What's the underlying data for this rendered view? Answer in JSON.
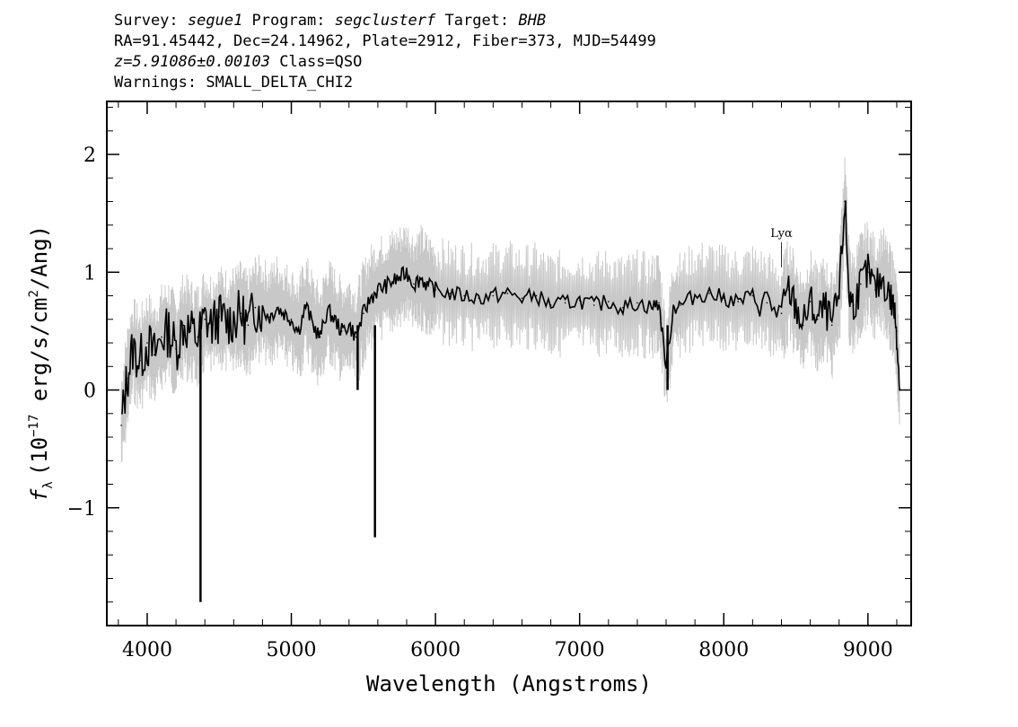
{
  "header": {
    "line1": {
      "survey_label": "Survey: ",
      "survey_value": "segue1",
      "program_label": " Program: ",
      "program_value": "segclusterf",
      "target_label": " Target: ",
      "target_value": "BHB"
    },
    "line2": "RA=91.45442, Dec=24.14962, Plate=2912, Fiber=373, MJD=54499",
    "line3": {
      "z_value": "z=5.91086±0.00103",
      "class_text": " Class=QSO"
    },
    "line4": "Warnings: SMALL_DELTA_CHI2"
  },
  "chart_data": {
    "type": "line",
    "xlabel": "Wavelength (Angstroms)",
    "ylabel_base": "f",
    "ylabel_sub": "λ",
    "ylabel_unit_prefix": "(10",
    "ylabel_exp": "−17",
    "ylabel_unit_mid": " erg/s/cm",
    "ylabel_exp2": "2",
    "ylabel_unit_suffix": "/Ang)",
    "xlim": [
      3720,
      9300
    ],
    "ylim": [
      -2.0,
      2.45
    ],
    "x_ticks": [
      4000,
      5000,
      6000,
      7000,
      8000,
      9000
    ],
    "x_tick_labels": [
      "4000",
      "5000",
      "6000",
      "7000",
      "8000",
      "9000"
    ],
    "y_ticks": [
      -1,
      0,
      1,
      2
    ],
    "y_tick_labels": [
      "−1",
      "0",
      "1",
      "2"
    ],
    "annotations": [
      {
        "text": "Lyα",
        "x": 8400,
        "y": 1.3
      }
    ],
    "series": [
      {
        "role": "spectrum",
        "color": "#000000",
        "x": [
          3820,
          3860,
          3900,
          3950,
          4000,
          4050,
          4100,
          4150,
          4200,
          4250,
          4300,
          4350,
          4400,
          4450,
          4500,
          4550,
          4600,
          4650,
          4700,
          4750,
          4800,
          4850,
          4900,
          4950,
          5000,
          5050,
          5100,
          5150,
          5200,
          5250,
          5300,
          5350,
          5400,
          5450,
          5500,
          5550,
          5600,
          5650,
          5700,
          5750,
          5800,
          5850,
          5900,
          5950,
          6000,
          6100,
          6200,
          6300,
          6400,
          6500,
          6600,
          6700,
          6800,
          6900,
          7000,
          7100,
          7200,
          7300,
          7400,
          7500,
          7550,
          7600,
          7650,
          7700,
          7800,
          7900,
          8000,
          8100,
          8200,
          8300,
          8400,
          8450,
          8500,
          8550,
          8600,
          8650,
          8700,
          8750,
          8800,
          8840,
          8870,
          8900,
          8950,
          9000,
          9050,
          9100,
          9150,
          9180,
          9200,
          9220
        ],
        "y": [
          -0.3,
          0.1,
          0.35,
          0.25,
          0.4,
          0.3,
          0.45,
          0.5,
          0.35,
          0.55,
          0.5,
          0.45,
          0.6,
          0.55,
          0.62,
          0.58,
          0.6,
          0.65,
          0.55,
          0.7,
          0.68,
          0.62,
          0.7,
          0.65,
          0.6,
          0.5,
          0.72,
          0.55,
          0.45,
          0.68,
          0.6,
          0.5,
          0.55,
          0.45,
          0.65,
          0.78,
          0.85,
          0.88,
          0.92,
          0.95,
          1.0,
          0.9,
          0.95,
          0.88,
          0.85,
          0.82,
          0.8,
          0.78,
          0.8,
          0.82,
          0.78,
          0.8,
          0.72,
          0.74,
          0.76,
          0.72,
          0.75,
          0.7,
          0.74,
          0.7,
          0.74,
          0.2,
          0.7,
          0.72,
          0.8,
          0.82,
          0.78,
          0.75,
          0.8,
          0.74,
          0.65,
          0.85,
          0.7,
          0.55,
          0.75,
          0.6,
          0.7,
          0.55,
          0.8,
          1.6,
          0.8,
          0.72,
          0.9,
          1.0,
          0.85,
          0.95,
          0.8,
          0.7,
          0.5,
          0.0
        ]
      },
      {
        "role": "spikes",
        "color": "#000000",
        "x": [
          4370,
          5580,
          5460,
          7610
        ],
        "y": [
          -1.8,
          -1.25,
          0.0,
          0.0
        ]
      }
    ]
  }
}
